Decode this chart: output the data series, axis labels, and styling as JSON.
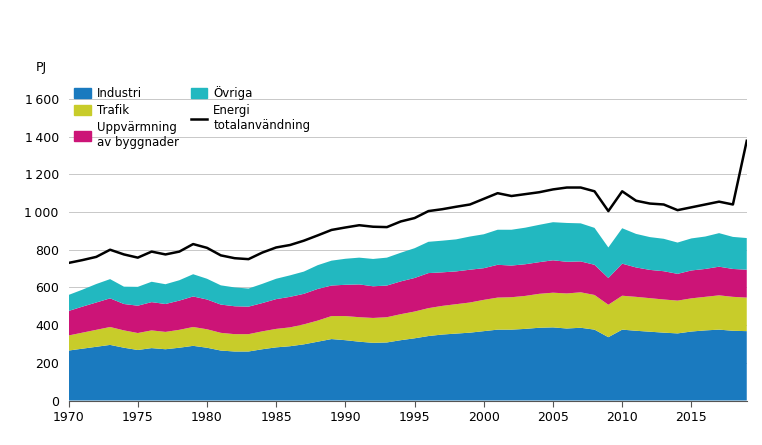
{
  "years": [
    1970,
    1971,
    1972,
    1973,
    1974,
    1975,
    1976,
    1977,
    1978,
    1979,
    1980,
    1981,
    1982,
    1983,
    1984,
    1985,
    1986,
    1987,
    1988,
    1989,
    1990,
    1991,
    1992,
    1993,
    1994,
    1995,
    1996,
    1997,
    1998,
    1999,
    2000,
    2001,
    2002,
    2003,
    2004,
    2005,
    2006,
    2007,
    2008,
    2009,
    2010,
    2011,
    2012,
    2013,
    2014,
    2015,
    2016,
    2017,
    2018,
    2019
  ],
  "industri": [
    265,
    275,
    285,
    295,
    280,
    268,
    278,
    272,
    280,
    290,
    280,
    265,
    260,
    260,
    272,
    282,
    288,
    298,
    312,
    326,
    320,
    312,
    306,
    308,
    320,
    330,
    342,
    350,
    355,
    360,
    368,
    376,
    376,
    380,
    386,
    388,
    382,
    386,
    376,
    336,
    376,
    370,
    365,
    360,
    356,
    366,
    372,
    376,
    370,
    368
  ],
  "trafik": [
    80,
    85,
    90,
    95,
    92,
    90,
    94,
    92,
    95,
    100,
    98,
    94,
    92,
    92,
    95,
    98,
    100,
    106,
    112,
    122,
    128,
    130,
    132,
    134,
    138,
    142,
    148,
    152,
    156,
    160,
    166,
    170,
    172,
    175,
    180,
    184,
    186,
    188,
    184,
    172,
    180,
    180,
    178,
    176,
    174,
    176,
    178,
    182,
    180,
    178
  ],
  "uppvarmning": [
    130,
    138,
    145,
    152,
    140,
    145,
    150,
    148,
    155,
    162,
    158,
    150,
    148,
    146,
    150,
    158,
    162,
    162,
    168,
    162,
    166,
    174,
    168,
    168,
    174,
    178,
    186,
    178,
    174,
    174,
    168,
    174,
    168,
    168,
    168,
    172,
    168,
    164,
    160,
    142,
    170,
    156,
    150,
    150,
    142,
    148,
    148,
    152,
    148,
    148
  ],
  "ovriga": [
    85,
    90,
    98,
    102,
    92,
    100,
    108,
    105,
    108,
    118,
    110,
    102,
    100,
    96,
    102,
    108,
    114,
    118,
    126,
    132,
    138,
    142,
    145,
    148,
    152,
    158,
    166,
    168,
    170,
    176,
    180,
    186,
    190,
    194,
    198,
    202,
    206,
    202,
    196,
    162,
    188,
    178,
    174,
    172,
    166,
    170,
    172,
    178,
    170,
    168
  ],
  "total_line": [
    730,
    745,
    762,
    800,
    775,
    758,
    790,
    775,
    790,
    830,
    810,
    770,
    755,
    750,
    785,
    812,
    825,
    848,
    876,
    905,
    918,
    930,
    922,
    920,
    950,
    968,
    1005,
    1015,
    1028,
    1040,
    1070,
    1100,
    1085,
    1095,
    1105,
    1120,
    1130,
    1130,
    1110,
    1005,
    1110,
    1060,
    1045,
    1040,
    1010,
    1025,
    1040,
    1055,
    1040,
    1378
  ],
  "colors": {
    "industri": "#1a7abf",
    "trafik": "#c8cc2a",
    "uppvarmning": "#cc1477",
    "ovriga": "#22b8c0"
  },
  "ylabel": "PJ",
  "ylim": [
    0,
    1700
  ],
  "yticks": [
    0,
    200,
    400,
    600,
    800,
    1000,
    1200,
    1400,
    1600
  ],
  "xticks": [
    1970,
    1975,
    1980,
    1985,
    1990,
    1995,
    2000,
    2005,
    2010,
    2015
  ],
  "grid_color": "#c8c8c8",
  "background_color": "#ffffff"
}
